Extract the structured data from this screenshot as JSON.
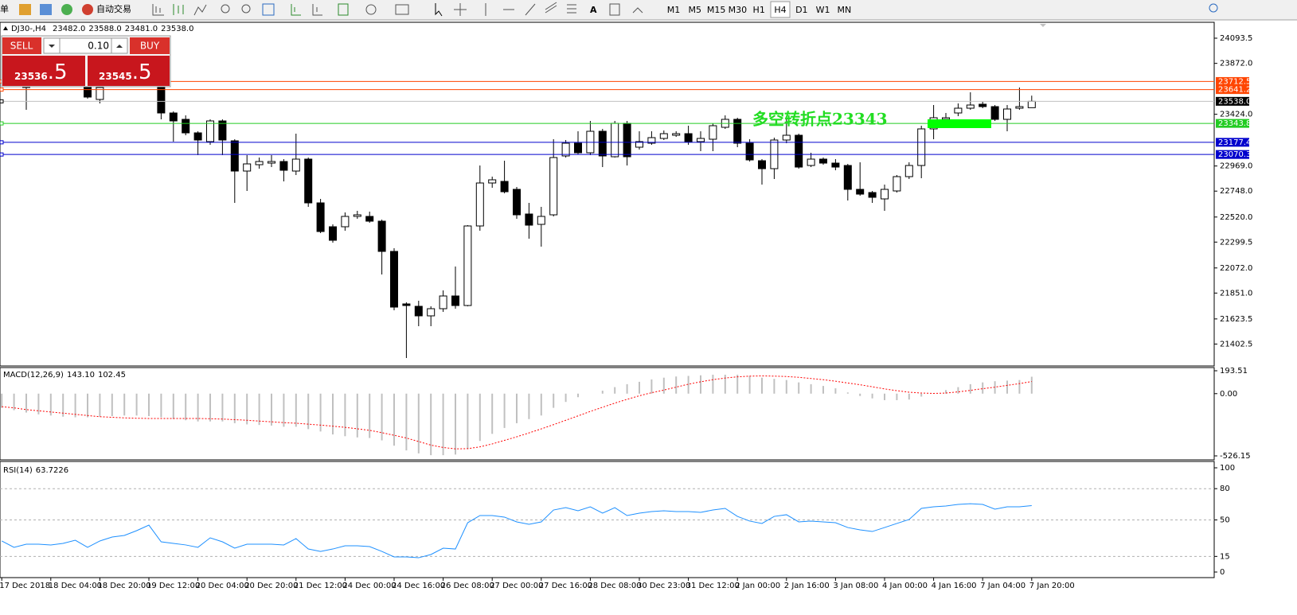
{
  "toolbar": {
    "menu_fragment": "单",
    "autotrade": "自动交易",
    "timeframes": [
      "M1",
      "M5",
      "M15",
      "M30",
      "H1",
      "H4",
      "D1",
      "W1",
      "MN"
    ],
    "active_timeframe": 5
  },
  "trade_panel": {
    "sell": "SELL",
    "lots": "0.10",
    "buy": "BUY",
    "bid_big": "23536",
    "bid_small": ".5",
    "ask_big": "23545",
    "ask_small": ".5"
  },
  "chart_data": [
    {
      "type": "candlestick",
      "title": "DJ30-,H4",
      "header_ohlc": [
        "23482.0",
        "23588.0",
        "23481.0",
        "23538.0"
      ],
      "categories": [
        "17 Dec 2018",
        null,
        null,
        null,
        "18 Dec 04:00",
        null,
        null,
        null,
        "18 Dec 20:00",
        null,
        null,
        null,
        "19 Dec 12:00",
        null,
        null,
        null,
        "20 Dec 04:00",
        null,
        null,
        null,
        "20 Dec 20:00",
        null,
        null,
        null,
        "21 Dec 12:00",
        null,
        null,
        null,
        "24 Dec 00:00",
        null,
        null,
        null,
        "24 Dec 16:00",
        null,
        null,
        null,
        "26 Dec 08:00",
        null,
        null,
        null,
        "27 Dec 00:00",
        null,
        null,
        null,
        "27 Dec 16:00",
        null,
        null,
        null,
        "28 Dec 08:00",
        null,
        null,
        null,
        "30 Dec 23:00",
        null,
        null,
        null,
        "31 Dec 12:00",
        null,
        null,
        null,
        "2 Jan 00:00",
        null,
        null,
        null,
        "2 Jan 16:00",
        null,
        null,
        null,
        "3 Jan 08:00",
        null,
        null,
        null,
        "4 Jan 00:00",
        null,
        null,
        null,
        "4 Jan 16:00",
        null,
        null,
        null,
        "7 Jan 04:00",
        null,
        null,
        null,
        "7 Jan 20:00"
      ],
      "open": [
        null,
        null,
        23659.5,
        null,
        null,
        null,
        null,
        23673.5,
        23554.5,
        null,
        null,
        null,
        null,
        23659.5,
        23435.5,
        23379.5,
        23260.5,
        23183.5,
        23365.5,
        23190.5,
        22924.5,
        22980.5,
        22994.5,
        23008.5,
        22924.5,
        23029.5,
        22644.5,
        22434.5,
        22434.5,
        22525.5,
        22525.5,
        22483.5,
        22217.5,
        21755.5,
        21734.5,
        21650.5,
        21713.5,
        21825.5,
        21741.5,
        22441.5,
        22819.5,
        22833.5,
        22763.5,
        22546.5,
        22455.5,
        22539.5,
        23057.5,
        23169.5,
        23085.5,
        23274.5,
        23050.5,
        23344.5,
        23134.5,
        23169.5,
        23211.5,
        23239.5,
        23253.5,
        23183.5,
        23204.5,
        23309.5,
        23379.5,
        23169.5,
        23015.5,
        22945.5,
        23197.5,
        23239.5,
        22973.5,
        23029.5,
        22994.5,
        22973.5,
        22763.5,
        22735.5,
        22679.5,
        22749.5,
        22875.5,
        22973.5,
        23295.5,
        23379.5,
        23435.5,
        23477.5,
        23512.5,
        23491.5,
        23379.5,
        23477.5,
        23482.0
      ],
      "high": [
        null,
        null,
        23764.5,
        null,
        null,
        null,
        null,
        23694.5,
        23673.5,
        null,
        null,
        null,
        null,
        23673.5,
        23449.5,
        23414.5,
        23274.5,
        23379.5,
        23379.5,
        23204.5,
        23064.5,
        23043.5,
        23064.5,
        23029.5,
        23253.5,
        23043.5,
        22679.5,
        22455.5,
        22560.5,
        22574.5,
        22567.5,
        22497.5,
        22245.5,
        21769.5,
        21783.5,
        21734.5,
        21874.5,
        22084.5,
        22448.5,
        22973.5,
        22875.5,
        23015.5,
        22784.5,
        22644.5,
        22609.5,
        23204.5,
        23197.5,
        23274.5,
        23365.5,
        23295.5,
        23365.5,
        23365.5,
        23274.5,
        23274.5,
        23281.5,
        23274.5,
        23323.5,
        23274.5,
        23344.5,
        23414.5,
        23393.5,
        23204.5,
        23029.5,
        23218.5,
        23393.5,
        23253.5,
        23085.5,
        23043.5,
        23029.5,
        22987.5,
        23001.5,
        22749.5,
        22805.5,
        22889.5,
        23001.5,
        23323.5,
        23505.5,
        23435.5,
        23519.5,
        23617.5,
        23533.5,
        23505.5,
        23505.5,
        23659.5,
        23588.0
      ],
      "low": [
        null,
        null,
        23463.5,
        null,
        null,
        null,
        null,
        23561.5,
        23519.5,
        null,
        null,
        null,
        null,
        23379.5,
        23183.5,
        23239.5,
        23064.5,
        23155.5,
        23064.5,
        22644.5,
        22749.5,
        22945.5,
        22959.5,
        22833.5,
        22889.5,
        22609.5,
        22378.5,
        22294.5,
        22399.5,
        22504.5,
        22469.5,
        22014.5,
        21699.5,
        21279.5,
        21559.5,
        21559.5,
        21685.5,
        21713.5,
        21734.5,
        22399.5,
        22777.5,
        22728.5,
        22504.5,
        22329.5,
        22259.5,
        22525.5,
        23043.5,
        23071.5,
        23064.5,
        22959.5,
        23043.5,
        22973.5,
        23113.5,
        23155.5,
        23197.5,
        23225.5,
        23155.5,
        23099.5,
        23099.5,
        23295.5,
        23134.5,
        23008.5,
        22805.5,
        22854.5,
        23169.5,
        22945.5,
        22959.5,
        22980.5,
        22931.5,
        22665.5,
        22707.5,
        22644.5,
        22574.5,
        22735.5,
        22854.5,
        22861.5,
        23204.5,
        23344.5,
        23407.5,
        23463.5,
        23477.5,
        23365.5,
        23274.5,
        23463.5,
        23481.0
      ],
      "close": [
        null,
        null,
        23729.5,
        null,
        null,
        null,
        null,
        23575.5,
        23659.5,
        null,
        null,
        null,
        null,
        23435.5,
        23365.5,
        23260.5,
        23197.5,
        23365.5,
        23197.5,
        22924.5,
        22987.5,
        23008.5,
        23008.5,
        22931.5,
        23029.5,
        22644.5,
        22392.5,
        22315.5,
        22525.5,
        22539.5,
        22483.5,
        22217.5,
        21727.5,
        21741.5,
        21650.5,
        21713.5,
        21825.5,
        21741.5,
        22441.5,
        22819.5,
        22847.5,
        22742.5,
        22539.5,
        22448.5,
        22525.5,
        23043.5,
        23169.5,
        23085.5,
        23274.5,
        23057.5,
        23344.5,
        23050.5,
        23183.5,
        23218.5,
        23253.5,
        23253.5,
        23183.5,
        23211.5,
        23323.5,
        23379.5,
        23169.5,
        23022.5,
        22945.5,
        23197.5,
        23239.5,
        22959.5,
        23029.5,
        22994.5,
        22959.5,
        22763.5,
        22721.5,
        22693.5,
        22763.5,
        22875.5,
        22973.5,
        23295.5,
        23393.5,
        23393.5,
        23477.5,
        23505.5,
        23491.5,
        23379.5,
        23470.5,
        23491.5,
        23538.0
      ],
      "ylim": [
        21209.5,
        24233.5
      ],
      "yticks": [
        24093.5,
        {
          "value": 23872,
          "label": "23872.0"
        },
        {
          "value": 23424,
          "label": "23424.0"
        },
        {
          "value": 22969,
          "label": "22969.0"
        },
        {
          "value": 22748,
          "label": "22748.0"
        },
        {
          "value": 22520,
          "label": "22520.0"
        },
        22299.5,
        {
          "value": 22072,
          "label": "22072.0"
        },
        {
          "value": 21851,
          "label": "21851.0"
        },
        21623.5,
        21402.5
      ],
      "levels": [
        {
          "value": 23712.5,
          "color": "#ff4500"
        },
        {
          "value": 23641.2,
          "color": "#ff4500"
        },
        {
          "value": 23538,
          "label": "23538.0",
          "color": "#000000"
        },
        {
          "value": 23343.8,
          "color": "#22cc22"
        },
        {
          "value": 23177.4,
          "color": "#0000cd"
        },
        {
          "value": 23070.3,
          "color": "#0000cd"
        }
      ],
      "annotation": {
        "text": "多空转折点23343",
        "color": "#22dd22"
      }
    },
    {
      "type": "macd",
      "title": "MACD(12,26,9)",
      "last_labels": [
        "143.10",
        "102.45"
      ],
      "series": [
        {
          "color": "#c0c0c0",
          "values": [
            -120,
            -140,
            -160,
            -175,
            -185,
            -195,
            -200,
            -200,
            -195,
            -190,
            -185,
            -185,
            -190,
            -200,
            -215,
            -225,
            -235,
            -235,
            -235,
            -250,
            -260,
            -265,
            -270,
            -280,
            -280,
            -300,
            -320,
            -345,
            -360,
            -370,
            -375,
            -395,
            -440,
            -480,
            -505,
            -520,
            -520,
            -515,
            -470,
            -400,
            -340,
            -290,
            -250,
            -215,
            -185,
            -120,
            -70,
            -30,
            0,
            25,
            55,
            80,
            100,
            120,
            135,
            145,
            150,
            155,
            160,
            160,
            160,
            150,
            135,
            125,
            115,
            95,
            80,
            65,
            45,
            10,
            -20,
            -40,
            -55,
            -55,
            -50,
            -25,
            5,
            30,
            55,
            80,
            95,
            105,
            110,
            115,
            143.1
          ]
        },
        {
          "color": "#ff0000",
          "values": [
            -110,
            -120,
            -135,
            -145,
            -155,
            -165,
            -175,
            -185,
            -195,
            -200,
            -205,
            -208,
            -210,
            -210,
            -210,
            -210,
            -210,
            -212,
            -215,
            -220,
            -225,
            -232,
            -238,
            -245,
            -250,
            -258,
            -266,
            -275,
            -285,
            -297,
            -310,
            -330,
            -352,
            -375,
            -405,
            -435,
            -455,
            -467,
            -465,
            -450,
            -425,
            -395,
            -365,
            -332,
            -298,
            -262,
            -225,
            -188,
            -150,
            -115,
            -80,
            -48,
            -18,
            8,
            30,
            55,
            80,
            100,
            118,
            132,
            142,
            148,
            150,
            148,
            145,
            138,
            128,
            118,
            105,
            90,
            75,
            58,
            40,
            25,
            12,
            5,
            2,
            5,
            15,
            28,
            42,
            55,
            70,
            85,
            102.45
          ]
        }
      ],
      "ylim": [
        -526.15,
        193.51
      ],
      "yticks": [
        193.51,
        {
          "value": 0,
          "label": "0.00"
        },
        -526.15
      ]
    },
    {
      "type": "line",
      "title": "RSI(14)",
      "last_label": "63.7226",
      "color": "#1e90ff",
      "values": [
        29.8,
        23.7,
        26.7,
        26.7,
        26,
        27.5,
        30.5,
        23.7,
        29.8,
        33.6,
        35.1,
        39.7,
        45,
        29,
        27.5,
        26,
        23.7,
        32.8,
        29,
        22.9,
        26.7,
        26.7,
        26.7,
        26,
        32.1,
        22.1,
        19.8,
        22.1,
        25.2,
        25.2,
        24.4,
        19.8,
        14.5,
        14.5,
        13.7,
        16.8,
        22.9,
        22.1,
        47.3,
        54.2,
        54.2,
        52.7,
        48.1,
        45.8,
        48.1,
        59.5,
        61.8,
        58.8,
        62.6,
        56.5,
        61.8,
        54.2,
        56.5,
        58,
        58.8,
        58,
        58,
        57.3,
        59.5,
        61.1,
        53.4,
        48.9,
        46.6,
        53.4,
        55,
        48.1,
        48.9,
        48.1,
        47.3,
        42.7,
        40.5,
        38.9,
        42.7,
        46.6,
        50.4,
        61.1,
        62.6,
        63.4,
        64.9,
        65.6,
        64.9,
        60.3,
        62.6,
        62.6,
        63.7226
      ],
      "ylim": [
        0,
        100
      ],
      "yticks": [
        100,
        80,
        50,
        15,
        0
      ],
      "grid": true
    }
  ]
}
